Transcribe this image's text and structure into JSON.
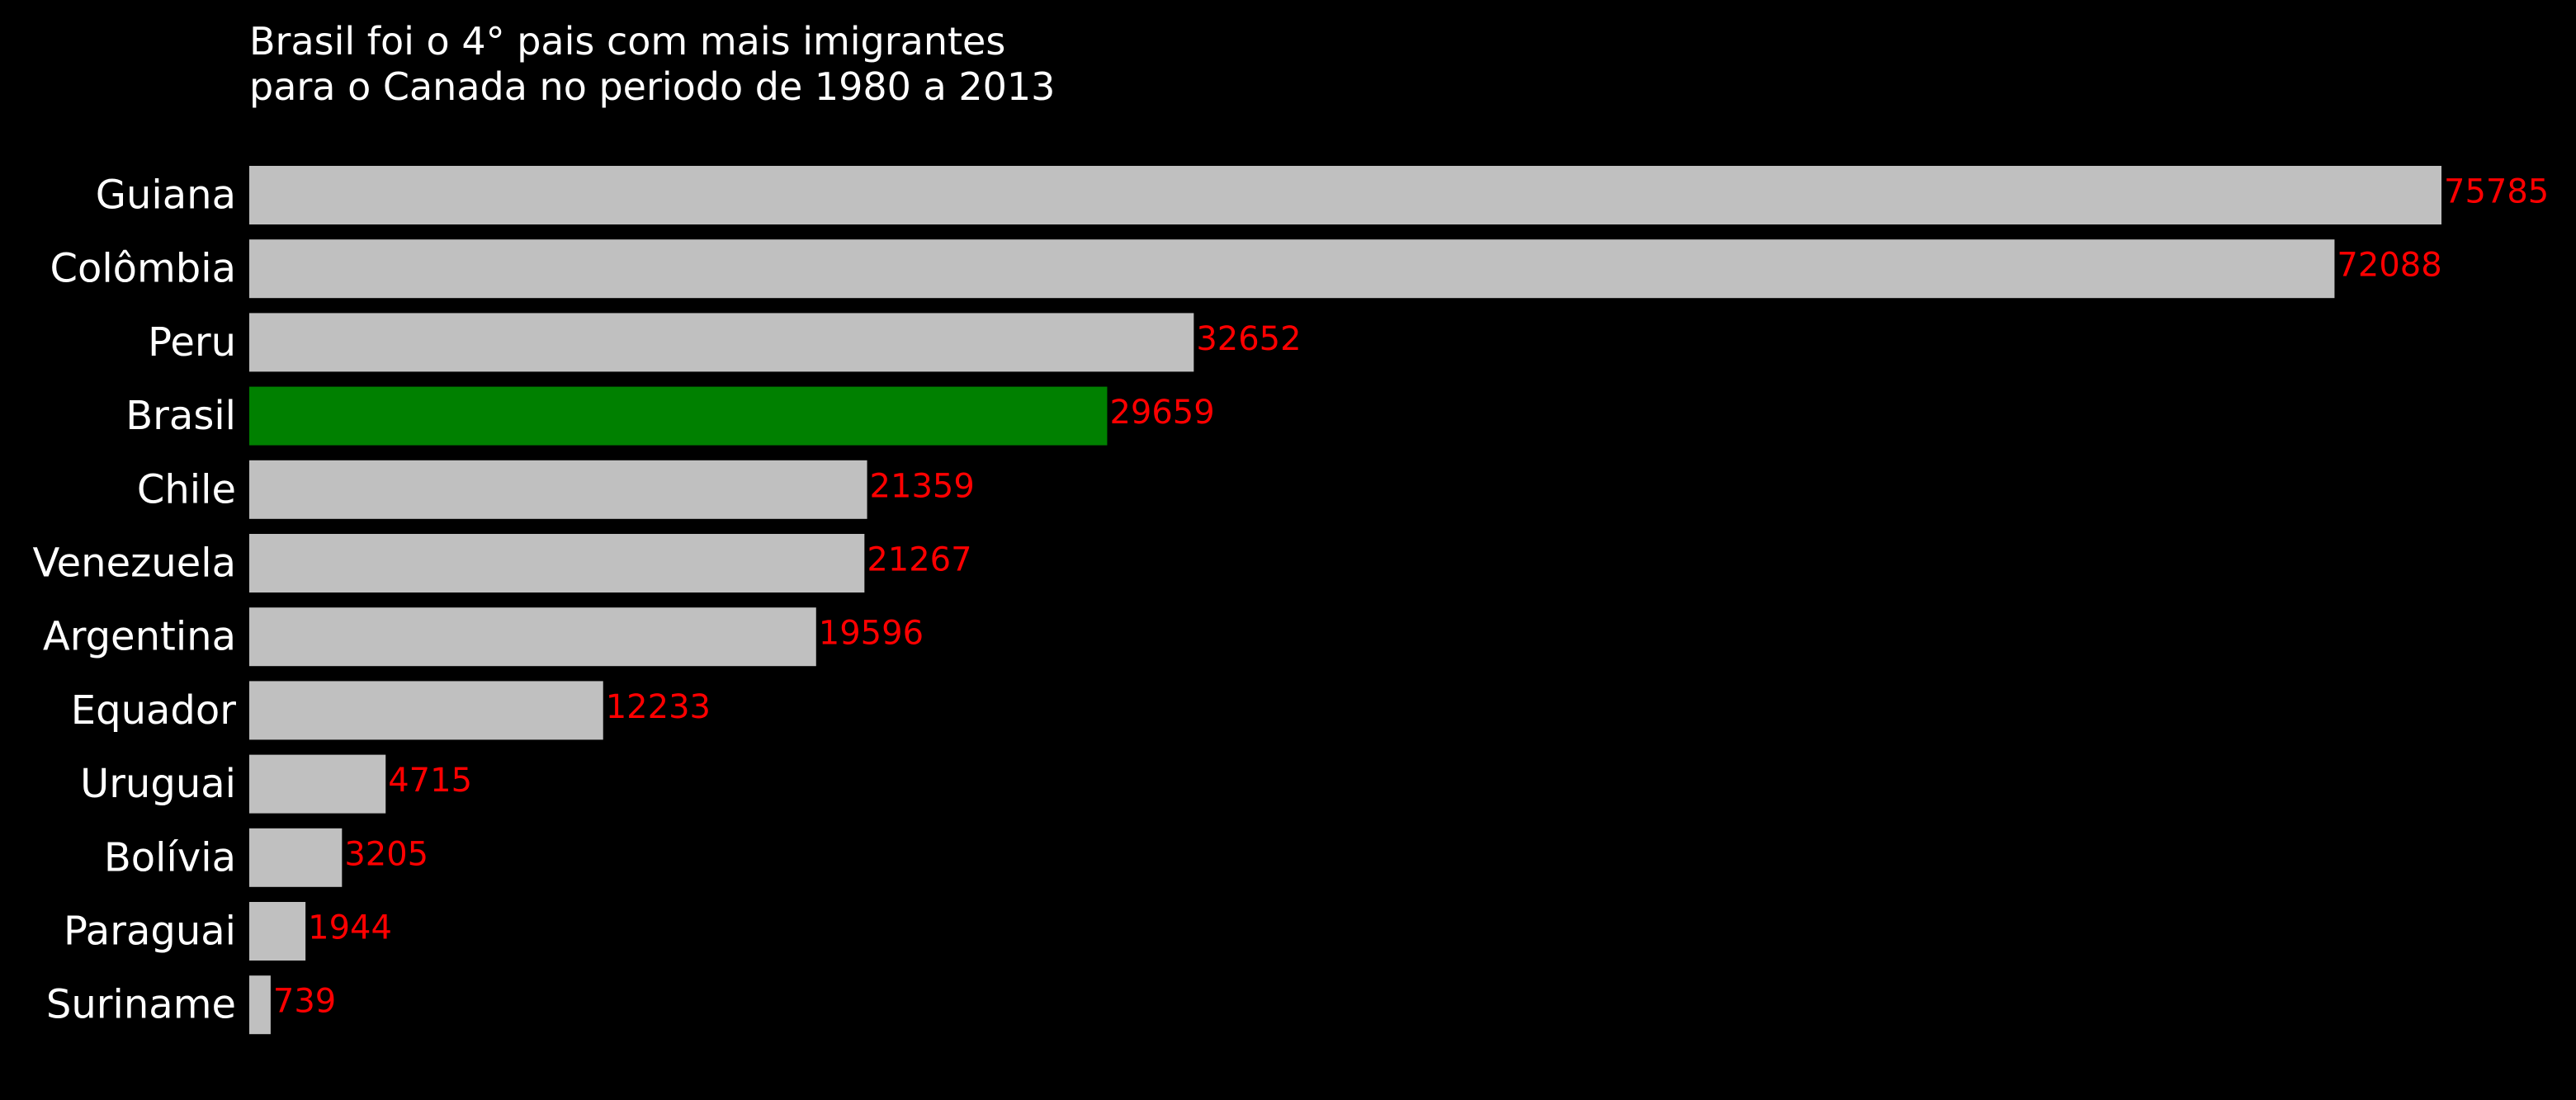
{
  "chart_data": {
    "type": "bar",
    "orientation": "horizontal",
    "title": [
      "Brasil foi o 4° pais com mais imigrantes",
      "para o Canada no periodo de 1980 a 2013"
    ],
    "categories": [
      "Guiana",
      "Colômbia",
      "Peru",
      "Brasil",
      "Chile",
      "Venezuela",
      "Argentina",
      "Equador",
      "Uruguai",
      "Bolívia",
      "Paraguai",
      "Suriname"
    ],
    "values": [
      75785,
      72088,
      32652,
      29659,
      21359,
      21267,
      19596,
      12233,
      4715,
      3205,
      1944,
      739
    ],
    "value_labels": [
      "75785",
      "72088",
      "32652",
      "29659",
      "21359",
      "21267",
      "19596",
      "12233",
      "4715",
      "3205",
      "1944",
      "739"
    ],
    "highlight_category": "Brasil",
    "xlim": [
      0,
      75785
    ],
    "grid": false,
    "legend": "none",
    "axes_visible": false
  },
  "colors": {
    "background": "#000000",
    "bar_default": "#c0c0c0",
    "bar_highlight": "#008000",
    "value_label": "#ff0000",
    "text": "#ffffff"
  }
}
